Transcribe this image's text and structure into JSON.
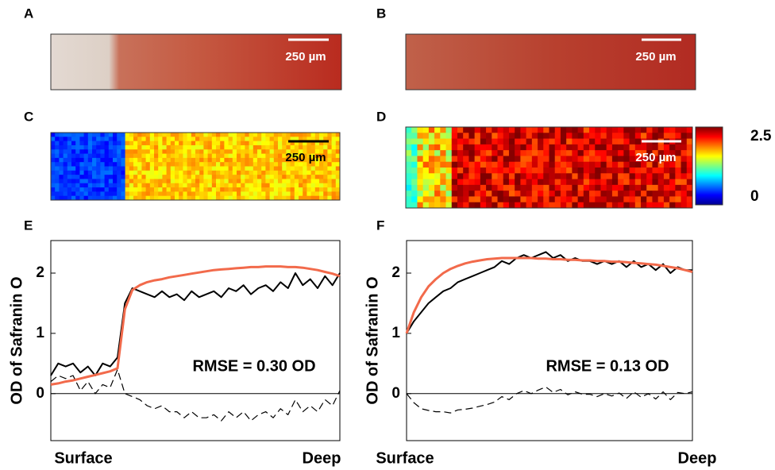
{
  "figure": {
    "panel_labels": [
      "A",
      "B",
      "C",
      "D",
      "E",
      "F"
    ],
    "scale_bar_labels": [
      "250 µm",
      "250 µm",
      "250 µm",
      "250 µm"
    ],
    "colorbar": {
      "lim": [
        0,
        2.5
      ],
      "ticks": [
        0,
        2.5
      ]
    }
  },
  "chart_data": [
    {
      "type": "line",
      "ylabel": "OD of Safranin O",
      "x_labels": [
        "Surface",
        "Deep"
      ],
      "annotation": "RMSE = 0.30 OD",
      "ylim": [
        -0.78,
        2.54
      ],
      "yticks": [
        0,
        1,
        2
      ],
      "series": [
        {
          "color": "#000000",
          "dash": false,
          "values": [
            0.3,
            0.5,
            0.45,
            0.5,
            0.35,
            0.45,
            0.3,
            0.5,
            0.45,
            0.6,
            1.5,
            1.75,
            1.7,
            1.65,
            1.6,
            1.7,
            1.6,
            1.65,
            1.55,
            1.7,
            1.6,
            1.65,
            1.7,
            1.6,
            1.75,
            1.7,
            1.8,
            1.65,
            1.75,
            1.8,
            1.7,
            1.85,
            1.75,
            2.0,
            1.8,
            1.9,
            1.75,
            1.95,
            1.8,
            2.0
          ]
        },
        {
          "color": "#f26a4b",
          "dash": false,
          "values": [
            0.15,
            0.17,
            0.2,
            0.22,
            0.25,
            0.28,
            0.31,
            0.34,
            0.37,
            0.42,
            1.4,
            1.72,
            1.8,
            1.85,
            1.88,
            1.9,
            1.93,
            1.95,
            1.97,
            1.99,
            2.01,
            2.03,
            2.05,
            2.06,
            2.07,
            2.08,
            2.09,
            2.1,
            2.1,
            2.11,
            2.11,
            2.11,
            2.1,
            2.1,
            2.09,
            2.07,
            2.05,
            2.02,
            1.99,
            1.95
          ]
        },
        {
          "color": "#000000",
          "dash": true,
          "values": [
            0.2,
            0.3,
            0.25,
            0.3,
            0.05,
            0.2,
            0.0,
            0.15,
            0.1,
            0.4,
            0.0,
            -0.05,
            -0.1,
            -0.2,
            -0.25,
            -0.2,
            -0.3,
            -0.3,
            -0.4,
            -0.3,
            -0.4,
            -0.4,
            -0.35,
            -0.45,
            -0.3,
            -0.4,
            -0.3,
            -0.45,
            -0.35,
            -0.3,
            -0.4,
            -0.25,
            -0.35,
            -0.1,
            -0.3,
            -0.2,
            -0.3,
            -0.1,
            -0.2,
            0.05
          ]
        }
      ]
    },
    {
      "type": "line",
      "ylabel": "OD of Safranin O",
      "x_labels": [
        "Surface",
        "Deep"
      ],
      "annotation": "RMSE = 0.13 OD",
      "ylim": [
        -0.78,
        2.54
      ],
      "yticks": [
        0,
        1,
        2
      ],
      "series": [
        {
          "color": "#000000",
          "dash": false,
          "values": [
            1.0,
            1.2,
            1.35,
            1.5,
            1.6,
            1.7,
            1.75,
            1.85,
            1.9,
            1.95,
            2.0,
            2.05,
            2.1,
            2.2,
            2.15,
            2.25,
            2.3,
            2.25,
            2.3,
            2.35,
            2.25,
            2.3,
            2.2,
            2.25,
            2.2,
            2.2,
            2.15,
            2.2,
            2.15,
            2.2,
            2.1,
            2.2,
            2.1,
            2.15,
            2.05,
            2.15,
            2.0,
            2.1,
            2.05,
            2.05
          ]
        },
        {
          "color": "#f26a4b",
          "dash": false,
          "values": [
            1.0,
            1.35,
            1.6,
            1.78,
            1.9,
            2.0,
            2.07,
            2.12,
            2.16,
            2.19,
            2.21,
            2.23,
            2.24,
            2.25,
            2.25,
            2.25,
            2.25,
            2.25,
            2.24,
            2.24,
            2.23,
            2.23,
            2.22,
            2.22,
            2.21,
            2.21,
            2.2,
            2.2,
            2.19,
            2.19,
            2.18,
            2.17,
            2.16,
            2.15,
            2.14,
            2.12,
            2.1,
            2.08,
            2.05,
            2.02
          ]
        },
        {
          "color": "#000000",
          "dash": true,
          "values": [
            0,
            -0.15,
            -0.25,
            -0.28,
            -0.3,
            -0.3,
            -0.32,
            -0.27,
            -0.26,
            -0.24,
            -0.21,
            -0.18,
            -0.14,
            -0.05,
            -0.1,
            0,
            0.05,
            0,
            0.06,
            0.11,
            0.02,
            0.07,
            -0.02,
            0.03,
            -0.01,
            -0.01,
            -0.05,
            0,
            -0.04,
            0.01,
            -0.08,
            0.03,
            -0.06,
            0,
            -0.09,
            0.03,
            -0.1,
            0.02,
            0,
            0.03
          ]
        }
      ]
    }
  ]
}
